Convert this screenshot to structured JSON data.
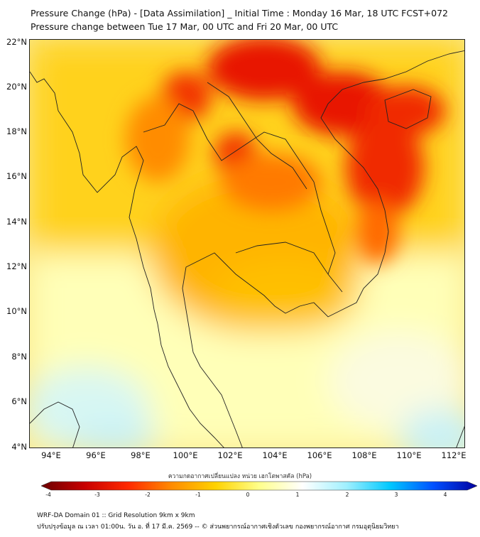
{
  "title": "Pressure Change (hPa) - [Data Assimilation] _ Initial Time : Monday 16 Mar, 18 UTC FCST+072",
  "subtitle": "Pressure change between Tue 17 Mar, 00 UTC and Fri 20 Mar, 00 UTC",
  "lat_ticks": [
    "22°N",
    "20°N",
    "18°N",
    "16°N",
    "14°N",
    "12°N",
    "10°N",
    "8°N",
    "6°N",
    "4°N"
  ],
  "lon_ticks": [
    "94°E",
    "96°E",
    "98°E",
    "100°E",
    "102°E",
    "104°E",
    "106°E",
    "108°E",
    "110°E",
    "112°E"
  ],
  "colorbar": {
    "label": "ความกดอากาศเปลี่ยนแปลง หน่วย เฮกโตพาสคัล (hPa)",
    "ticks": [
      "-4",
      "-3",
      "-2",
      "-1",
      "0",
      "1",
      "2",
      "3",
      "4"
    ],
    "colors": [
      "#6b0000",
      "#c80000",
      "#ff2a00",
      "#ff8c00",
      "#ffd200",
      "#ffff8c",
      "#ffffff",
      "#a0f0ff",
      "#00c8ff",
      "#0050ff",
      "#0000a0"
    ]
  },
  "footer": {
    "line1": "WRF-DA Domain 01 :: Grid Resolution 9km x 9km",
    "line2": "ปรับปรุงข้อมูล ณ เวลา 01:00น. วัน อ. ที่ 17 มี.ค. 2569 -- © ส่วนพยากรณ์อากาศเชิงตัวเลข กองพยากรณ์อากาศ กรมอุตุนิยมวิทยา"
  }
}
